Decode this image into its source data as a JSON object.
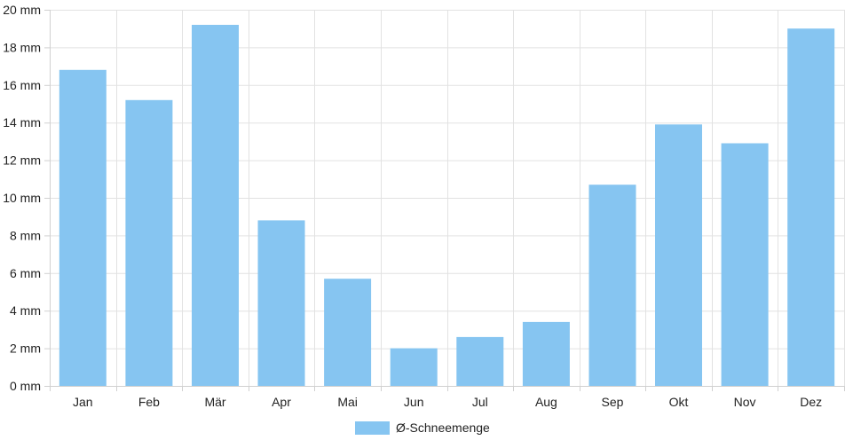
{
  "chart_data": {
    "type": "bar",
    "categories": [
      "Jan",
      "Feb",
      "Mär",
      "Apr",
      "Mai",
      "Jun",
      "Jul",
      "Aug",
      "Sep",
      "Okt",
      "Nov",
      "Dez"
    ],
    "series": [
      {
        "name": "Ø-Schneemenge",
        "values": [
          16.8,
          15.2,
          19.2,
          8.8,
          5.7,
          2.0,
          2.6,
          3.4,
          10.7,
          13.9,
          12.9,
          19.0
        ],
        "color": "#86c5f1"
      }
    ],
    "y_ticks": [
      "0 mm",
      "2 mm",
      "4 mm",
      "6 mm",
      "8 mm",
      "10 mm",
      "12 mm",
      "14 mm",
      "16 mm",
      "18 mm",
      "20 mm"
    ],
    "ylim": [
      0,
      20
    ],
    "y_unit": "mm",
    "grid": true,
    "legend_position": "bottom-center",
    "title": "",
    "xlabel": "",
    "ylabel": ""
  }
}
